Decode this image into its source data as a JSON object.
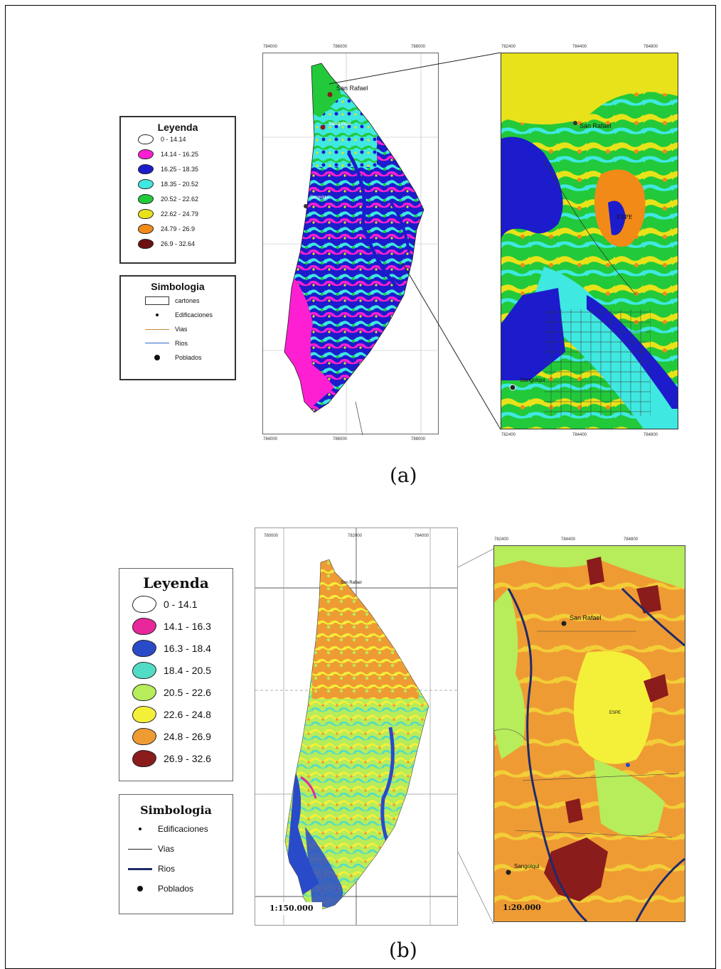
{
  "panel_a": {
    "caption": "(a)",
    "legend": {
      "title": "Leyenda",
      "items": [
        {
          "label": "0 - 14.14",
          "color": "#ffffff"
        },
        {
          "label": "14.14 - 16.25",
          "color": "#ff1fd2"
        },
        {
          "label": "16.25 - 18.35",
          "color": "#1c1ccc"
        },
        {
          "label": "18.35 - 20.52",
          "color": "#3fe8e0"
        },
        {
          "label": "20.52 - 22.62",
          "color": "#22c93a"
        },
        {
          "label": "22.62 - 24.79",
          "color": "#e8e21a"
        },
        {
          "label": "24.79 - 26.9",
          "color": "#f28a17"
        },
        {
          "label": "26.9 - 32.64",
          "color": "#6b1010"
        }
      ]
    },
    "symbology": {
      "title": "Simbologia",
      "items": [
        {
          "label": "cartones",
          "icon": "rectangle-outline-icon"
        },
        {
          "label": "Edificaciones",
          "icon": "dot-icon"
        },
        {
          "label": "Vias",
          "icon": "road-line-icon"
        },
        {
          "label": "Rios",
          "icon": "river-line-icon"
        },
        {
          "label": "Poblados",
          "icon": "town-dot-icon"
        }
      ]
    },
    "map_labels": {
      "town_1": "San Rafael",
      "town_2": "Sangolqui",
      "town_3": "Sangolqui",
      "inset_town_1": "San Rafael",
      "inset_town_2": "Sangolqui",
      "inset_place": "ESPE"
    },
    "axis_ticks_top": [
      "784000",
      "786000",
      "788000"
    ],
    "axis_ticks_bottom": [
      "784000",
      "786000",
      "788000"
    ],
    "inset_ticks_top": [
      "782400",
      "784400",
      "784800"
    ],
    "inset_ticks_bottom": [
      "782400",
      "784400",
      "784800"
    ]
  },
  "panel_b": {
    "caption": "(b)",
    "legend": {
      "title": "Leyenda",
      "items": [
        {
          "label": "0 - 14.1",
          "color": "#ffffff"
        },
        {
          "label": "14.1 - 16.3",
          "color": "#e8279b"
        },
        {
          "label": "16.3 - 18.4",
          "color": "#2a4bc9"
        },
        {
          "label": "18.4 - 20.5",
          "color": "#52dcc6"
        },
        {
          "label": "20.5 - 22.6",
          "color": "#b7ec5a"
        },
        {
          "label": "22.6 - 24.8",
          "color": "#f4f03a"
        },
        {
          "label": "24.8 - 26.9",
          "color": "#ef9b33"
        },
        {
          "label": "26.9 - 32.6",
          "color": "#8a1c1c"
        }
      ]
    },
    "symbology": {
      "title": "Simbologia",
      "items": [
        {
          "label": "Edificaciones",
          "icon": "dot-icon"
        },
        {
          "label": "Vias",
          "icon": "road-line-icon"
        },
        {
          "label": "Rios",
          "icon": "river-line-icon"
        },
        {
          "label": "Poblados",
          "icon": "town-dot-icon"
        }
      ]
    },
    "map_labels": {
      "town_1": "San Rafael",
      "inset_town_1": "San Rafael",
      "inset_town_2": "Sangolqui",
      "inset_place": "ESPE"
    },
    "scale_main": "1:150.000",
    "scale_inset": "1:20.000",
    "axis_ticks_top": [
      "780000",
      "782000",
      "784000"
    ],
    "inset_ticks_top": [
      "782400",
      "784400",
      "784800"
    ]
  }
}
